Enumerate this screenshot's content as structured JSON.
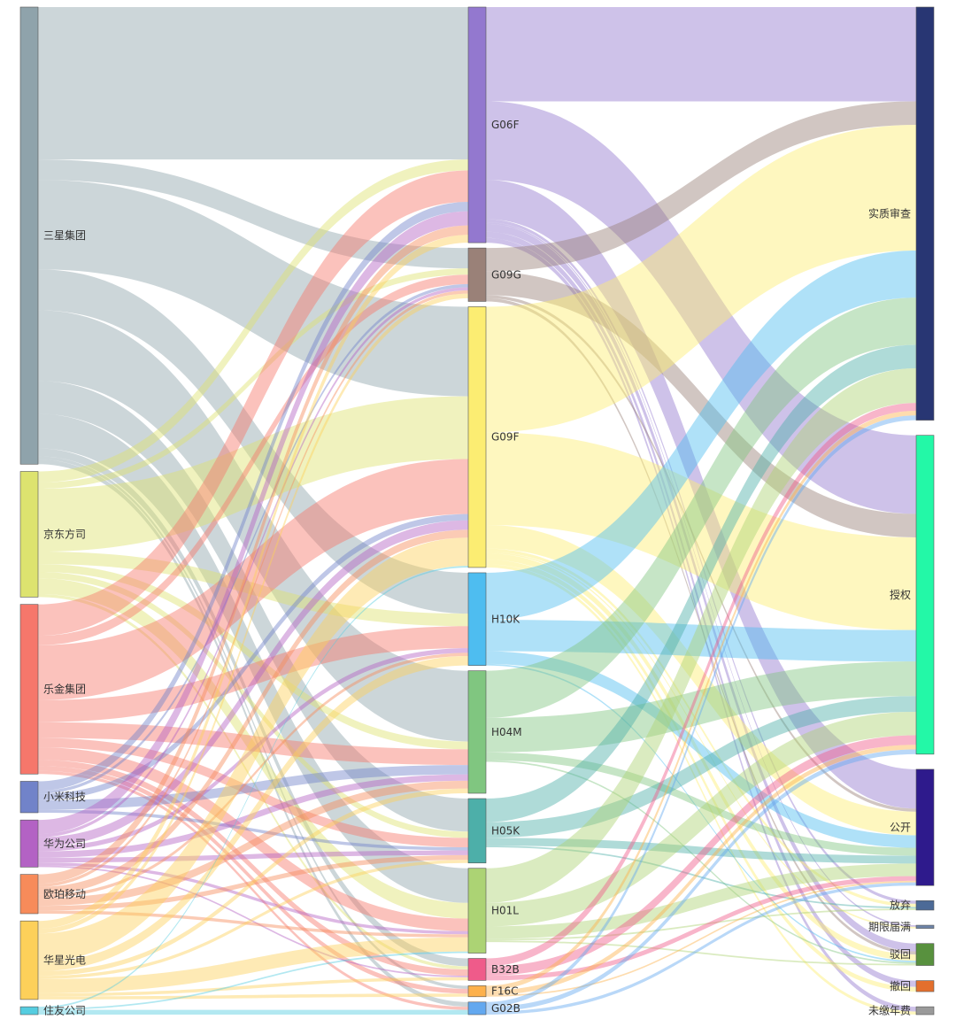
{
  "chart_data": {
    "type": "sankey",
    "levels": [
      [
        {
          "name": "三星集团",
          "color": "#8fa3ab"
        },
        {
          "name": "京东方司",
          "color": "#dde36f"
        },
        {
          "name": "乐金集团",
          "color": "#f6776b"
        },
        {
          "name": "小米科技",
          "color": "#7183c9"
        },
        {
          "name": "华为公司",
          "color": "#b362c4"
        },
        {
          "name": "欧珀移动",
          "color": "#f78b5a"
        },
        {
          "name": "华星光电",
          "color": "#fdd05a"
        },
        {
          "name": "住友公司",
          "color": "#55cde0"
        }
      ],
      [
        {
          "name": "G06F",
          "color": "#9378cf"
        },
        {
          "name": "G09G",
          "color": "#9a8178"
        },
        {
          "name": "G09F",
          "color": "#fced72"
        },
        {
          "name": "H10K",
          "color": "#4ebdf0"
        },
        {
          "name": "H04M",
          "color": "#80c680"
        },
        {
          "name": "H05K",
          "color": "#4dafa9"
        },
        {
          "name": "H01L",
          "color": "#acd374"
        },
        {
          "name": "B32B",
          "color": "#ef5b8a"
        },
        {
          "name": "F16C",
          "color": "#fdb14c"
        },
        {
          "name": "G02B",
          "color": "#63a8ef"
        }
      ],
      [
        {
          "name": "实质审查",
          "color": "#283673"
        },
        {
          "name": "授权",
          "color": "#23f8a7"
        },
        {
          "name": "公开",
          "color": "#2e1a8c"
        },
        {
          "name": "放弃",
          "color": "#4c6a97"
        },
        {
          "name": "期限届满",
          "color": "#6e84a8"
        },
        {
          "name": "驳回",
          "color": "#58913e"
        },
        {
          "name": "撤回",
          "color": "#e36f2d"
        },
        {
          "name": "未缴年费",
          "color": "#9a9a9a"
        }
      ]
    ],
    "links": [
      [
        "三星集团",
        "G06F",
        97
      ],
      [
        "三星集团",
        "G09G",
        13
      ],
      [
        "三星集团",
        "G09F",
        57
      ],
      [
        "三星集团",
        "H10K",
        26
      ],
      [
        "三星集团",
        "H04M",
        45
      ],
      [
        "三星集团",
        "H05K",
        21
      ],
      [
        "三星集团",
        "H01L",
        22
      ],
      [
        "三星集团",
        "B32B",
        5
      ],
      [
        "三星集团",
        "F16C",
        2
      ],
      [
        "三星集团",
        "G02B",
        3
      ],
      [
        "京东方司",
        "G06F",
        7
      ],
      [
        "京东方司",
        "G09G",
        4
      ],
      [
        "京东方司",
        "G09F",
        40
      ],
      [
        "京东方司",
        "H10K",
        8
      ],
      [
        "京东方司",
        "H04M",
        5
      ],
      [
        "京东方司",
        "H05K",
        4
      ],
      [
        "京东方司",
        "H01L",
        10
      ],
      [
        "京东方司",
        "B32B",
        2
      ],
      [
        "乐金集团",
        "G06F",
        20
      ],
      [
        "乐金集团",
        "G09G",
        6
      ],
      [
        "乐金集团",
        "G09F",
        35
      ],
      [
        "乐金集团",
        "H10K",
        14
      ],
      [
        "乐金集团",
        "H04M",
        10
      ],
      [
        "乐金集团",
        "H05K",
        6
      ],
      [
        "乐金集团",
        "H01L",
        8
      ],
      [
        "乐金集团",
        "B32B",
        4
      ],
      [
        "乐金集团",
        "F16C",
        3
      ],
      [
        "乐金集团",
        "G02B",
        2
      ],
      [
        "小米科技",
        "G06F",
        6
      ],
      [
        "小米科技",
        "G09G",
        2
      ],
      [
        "小米科技",
        "G09F",
        4
      ],
      [
        "小米科技",
        "H04M",
        6
      ],
      [
        "小米科技",
        "H05K",
        2
      ],
      [
        "华为公司",
        "G06F",
        9
      ],
      [
        "华为公司",
        "G09G",
        2
      ],
      [
        "华为公司",
        "G09F",
        6
      ],
      [
        "华为公司",
        "H10K",
        3
      ],
      [
        "华为公司",
        "H04M",
        4
      ],
      [
        "华为公司",
        "H05K",
        3
      ],
      [
        "华为公司",
        "H01L",
        2
      ],
      [
        "华为公司",
        "B32B",
        1
      ],
      [
        "欧珀移动",
        "G06F",
        6
      ],
      [
        "欧珀移动",
        "G09G",
        2
      ],
      [
        "欧珀移动",
        "G09F",
        5
      ],
      [
        "欧珀移动",
        "H10K",
        2
      ],
      [
        "欧珀移动",
        "H04M",
        5
      ],
      [
        "欧珀移动",
        "H05K",
        3
      ],
      [
        "欧珀移动",
        "H01L",
        2
      ],
      [
        "华星光电",
        "G06F",
        5
      ],
      [
        "华星光电",
        "G09G",
        3
      ],
      [
        "华星光电",
        "G09F",
        18
      ],
      [
        "华星光电",
        "H10K",
        6
      ],
      [
        "华星光电",
        "H04M",
        3
      ],
      [
        "华星光电",
        "H05K",
        2
      ],
      [
        "华星光电",
        "H01L",
        9
      ],
      [
        "华星光电",
        "B32B",
        2
      ],
      [
        "华星光电",
        "F16C",
        2
      ],
      [
        "住友公司",
        "G09F",
        1
      ],
      [
        "住友公司",
        "G02B",
        3
      ],
      [
        "住友公司",
        "H01L",
        1
      ],
      [
        "G06F",
        "实质审查",
        60
      ],
      [
        "G06F",
        "授权",
        50
      ],
      [
        "G06F",
        "公开",
        25
      ],
      [
        "G06F",
        "放弃",
        2
      ],
      [
        "G06F",
        "期限届满",
        1
      ],
      [
        "G06F",
        "驳回",
        5
      ],
      [
        "G06F",
        "撤回",
        4
      ],
      [
        "G06F",
        "未缴年费",
        3
      ],
      [
        "G09G",
        "实质审查",
        15
      ],
      [
        "G09G",
        "授权",
        15
      ],
      [
        "G09G",
        "公开",
        2
      ],
      [
        "G09G",
        "驳回",
        2
      ],
      [
        "G09F",
        "实质审查",
        80
      ],
      [
        "G09F",
        "授权",
        59
      ],
      [
        "G09F",
        "公开",
        15
      ],
      [
        "G09F",
        "放弃",
        2
      ],
      [
        "G09F",
        "期限届满",
        1
      ],
      [
        "G09F",
        "驳回",
        4
      ],
      [
        "G09F",
        "撤回",
        3
      ],
      [
        "G09F",
        "未缴年费",
        2
      ],
      [
        "H10K",
        "实质审查",
        30
      ],
      [
        "H10K",
        "授权",
        20
      ],
      [
        "H10K",
        "公开",
        8
      ],
      [
        "H10K",
        "驳回",
        1
      ],
      [
        "H04M",
        "实质审查",
        30
      ],
      [
        "H04M",
        "授权",
        22
      ],
      [
        "H04M",
        "公开",
        5
      ],
      [
        "H04M",
        "驳回",
        1
      ],
      [
        "H05K",
        "实质审查",
        15
      ],
      [
        "H05K",
        "授权",
        10
      ],
      [
        "H05K",
        "公开",
        5
      ],
      [
        "H05K",
        "放弃",
        1
      ],
      [
        "H01L",
        "实质审查",
        22
      ],
      [
        "H01L",
        "授权",
        15
      ],
      [
        "H01L",
        "公开",
        8
      ],
      [
        "H01L",
        "放弃",
        1
      ],
      [
        "H01L",
        "驳回",
        1
      ],
      [
        "B32B",
        "实质审查",
        5
      ],
      [
        "B32B",
        "授权",
        6
      ],
      [
        "B32B",
        "公开",
        3
      ],
      [
        "F16C",
        "实质审查",
        3
      ],
      [
        "F16C",
        "授权",
        3
      ],
      [
        "F16C",
        "公开",
        1
      ],
      [
        "G02B",
        "实质审查",
        3
      ],
      [
        "G02B",
        "授权",
        3
      ],
      [
        "G02B",
        "公开",
        2
      ]
    ],
    "link_opacity": 0.45,
    "legend": "none"
  }
}
